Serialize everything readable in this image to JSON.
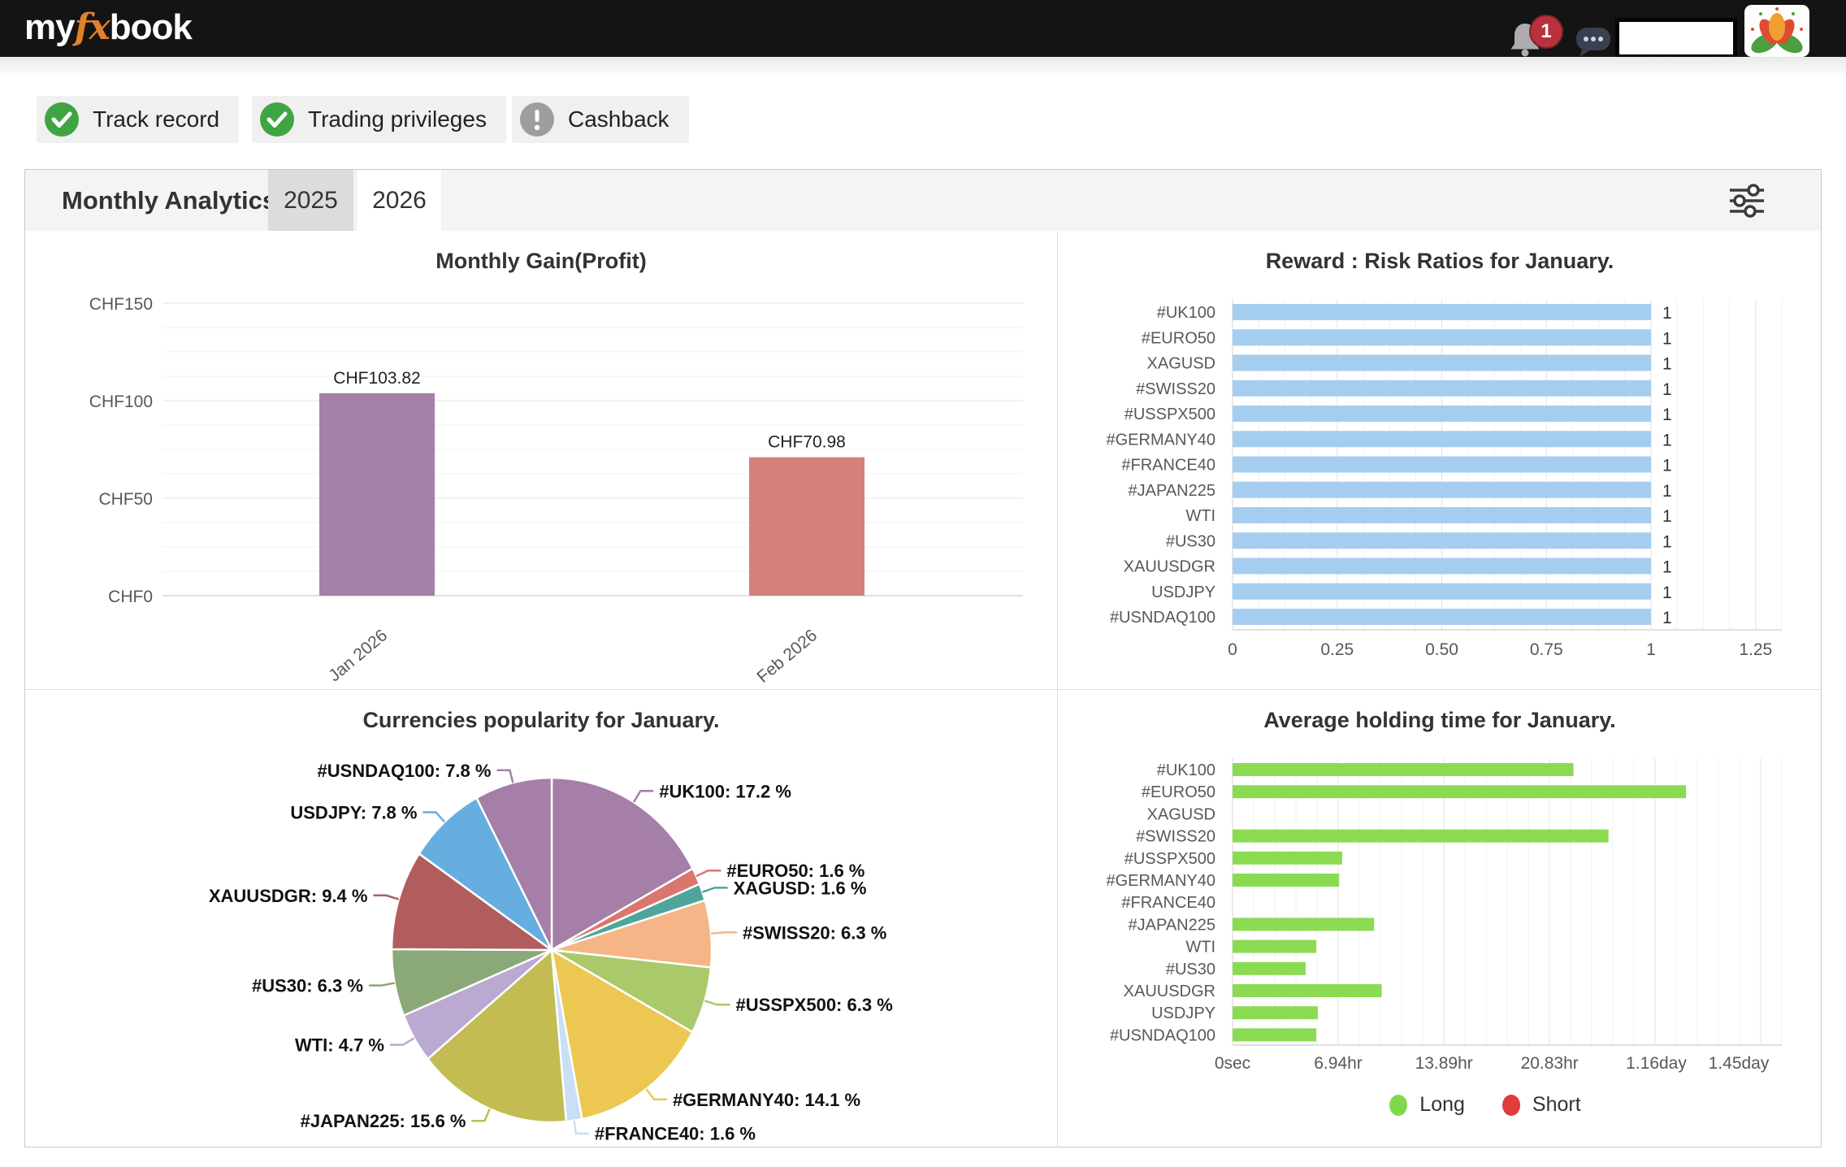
{
  "header": {
    "logo_part1": "my",
    "logo_part2": "fx",
    "logo_part3": "book",
    "notification_count": "1"
  },
  "badges": [
    {
      "label": "Track record",
      "status": "ok"
    },
    {
      "label": "Trading privileges",
      "status": "ok"
    },
    {
      "label": "Cashback",
      "status": "warning"
    }
  ],
  "analytics": {
    "title": "Monthly Analytics",
    "tabs": [
      {
        "label": "2025",
        "active": false
      },
      {
        "label": "2026",
        "active": true
      }
    ]
  },
  "colors": {
    "logo_accent": "#e0812c",
    "badge_ok_green": "#3fa544",
    "badge_warn_gray": "#9e9e9e",
    "notification_red": "#b8323e",
    "gain_bar_jan": "#a580a8",
    "gain_bar_feb": "#d4807b",
    "reward_bar_blue": "#a5cdf0",
    "holding_bar_green": "#8bdb52",
    "legend_long_green": "#80d94c",
    "legend_short_red": "#e13b3b"
  },
  "chart_data": [
    {
      "type": "bar",
      "title": "Monthly Gain(Profit)",
      "categories": [
        "Jan 2026",
        "Feb 2026"
      ],
      "values": [
        103.82,
        70.98
      ],
      "value_labels": [
        "CHF103.82",
        "CHF70.98"
      ],
      "bar_colors": [
        "#a580a8",
        "#d4807b"
      ],
      "y_ticks": [
        {
          "label": "CHF150",
          "value": 150
        },
        {
          "label": "CHF100",
          "value": 100
        },
        {
          "label": "CHF50",
          "value": 50
        },
        {
          "label": "CHF0",
          "value": 0
        }
      ],
      "ylim": [
        0,
        150
      ],
      "grid": true
    },
    {
      "type": "bar-horizontal",
      "title": "Reward : Risk Ratios for January.",
      "categories": [
        "#UK100",
        "#EURO50",
        "XAGUSD",
        "#SWISS20",
        "#USSPX500",
        "#GERMANY40",
        "#FRANCE40",
        "#JAPAN225",
        "WTI",
        "#US30",
        "XAUUSDGR",
        "USDJPY",
        "#USNDAQ100"
      ],
      "values": [
        1,
        1,
        1,
        1,
        1,
        1,
        1,
        1,
        1,
        1,
        1,
        1,
        1
      ],
      "value_label": "1",
      "x_ticks": [
        {
          "label": "0",
          "value": 0
        },
        {
          "label": "0.25",
          "value": 0.25
        },
        {
          "label": "0.50",
          "value": 0.5
        },
        {
          "label": "0.75",
          "value": 0.75
        },
        {
          "label": "1",
          "value": 1
        },
        {
          "label": "1.25",
          "value": 1.25
        }
      ],
      "xlim": [
        0,
        1.3125
      ],
      "bar_color": "#a5cdf0",
      "grid": true
    },
    {
      "type": "pie",
      "title": "Currencies popularity for January.",
      "slices": [
        {
          "label": "#UK100",
          "pct": "17.2",
          "value": 17.2,
          "color": "#a57fa8"
        },
        {
          "label": "#EURO50",
          "pct": "1.6",
          "value": 1.6,
          "color": "#d9776f"
        },
        {
          "label": "XAGUSD",
          "pct": "1.6",
          "value": 1.6,
          "color": "#4ea59c"
        },
        {
          "label": "#SWISS20",
          "pct": "6.3",
          "value": 6.3,
          "color": "#f5b587"
        },
        {
          "label": "#USSPX500",
          "pct": "6.3",
          "value": 6.3,
          "color": "#aac96a"
        },
        {
          "label": "#GERMANY40",
          "pct": "14.1",
          "value": 14.1,
          "color": "#ecc852"
        },
        {
          "label": "#FRANCE40",
          "pct": "1.6",
          "value": 1.6,
          "color": "#c9dff4"
        },
        {
          "label": "#JAPAN225",
          "pct": "15.6",
          "value": 15.6,
          "color": "#c2bc52"
        },
        {
          "label": "WTI",
          "pct": "4.7",
          "value": 4.7,
          "color": "#baa9d1"
        },
        {
          "label": "#US30",
          "pct": "6.3",
          "value": 6.3,
          "color": "#8ba878"
        },
        {
          "label": "XAUUSDGR",
          "pct": "9.4",
          "value": 9.4,
          "color": "#b25d5d"
        },
        {
          "label": "USDJPY",
          "pct": "7.8",
          "value": 7.8,
          "color": "#66aee0"
        },
        {
          "label": "#USNDAQ100",
          "pct": "7.8",
          "value": 7.8,
          "color": "#a57fa8"
        }
      ],
      "label_suffix": " %"
    },
    {
      "type": "bar-horizontal",
      "title": "Average holding time for January.",
      "categories": [
        "#UK100",
        "#EURO50",
        "XAGUSD",
        "#SWISS20",
        "#USSPX500",
        "#GERMANY40",
        "#FRANCE40",
        "#JAPAN225",
        "WTI",
        "#US30",
        "XAUUSDGR",
        "USDJPY",
        "#USNDAQ100"
      ],
      "values_hours": [
        22.4,
        29.8,
        0,
        24.7,
        7.2,
        7.0,
        0,
        9.3,
        5.5,
        4.8,
        9.8,
        5.6,
        5.5
      ],
      "x_ticks": [
        {
          "label": "0sec",
          "hours": 0
        },
        {
          "label": "6.94hr",
          "hours": 6.94
        },
        {
          "label": "13.89hr",
          "hours": 13.89
        },
        {
          "label": "20.83hr",
          "hours": 20.83
        },
        {
          "label": "1.16day",
          "hours": 27.84
        },
        {
          "label": "1.45day",
          "hours": 34.8
        }
      ],
      "xlim_hours": [
        0,
        36.3
      ],
      "bar_color": "#8bdb52",
      "grid": true,
      "legend": [
        {
          "label": "Long",
          "color": "#80d94c"
        },
        {
          "label": "Short",
          "color": "#e13b3b"
        }
      ]
    }
  ]
}
